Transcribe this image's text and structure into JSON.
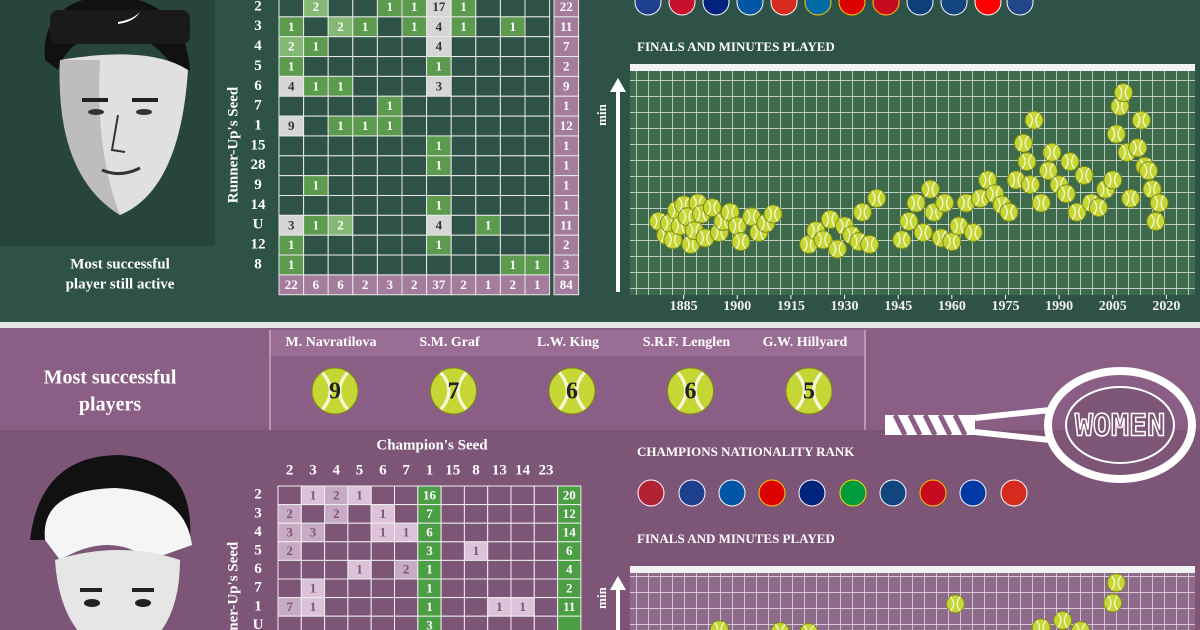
{
  "men": {
    "portrait_caption": [
      "Most successful",
      "player still active"
    ],
    "seed_matrix": {
      "row_axis_label": "Runner-Up's Seed",
      "rows": [
        {
          "seed": "2",
          "counts": [
            null,
            2,
            null,
            null,
            1,
            1,
            17,
            1,
            null,
            null,
            null
          ],
          "total": 22
        },
        {
          "seed": "3",
          "counts": [
            1,
            null,
            2,
            1,
            null,
            1,
            4,
            1,
            null,
            1,
            null
          ],
          "total": 11
        },
        {
          "seed": "4",
          "counts": [
            2,
            1,
            null,
            null,
            null,
            null,
            4,
            null,
            null,
            null,
            null
          ],
          "total": 7
        },
        {
          "seed": "5",
          "counts": [
            1,
            null,
            null,
            null,
            null,
            null,
            1,
            null,
            null,
            null,
            null
          ],
          "total": 2
        },
        {
          "seed": "6",
          "counts": [
            4,
            1,
            1,
            null,
            null,
            null,
            3,
            null,
            null,
            null,
            null
          ],
          "total": 9
        },
        {
          "seed": "7",
          "counts": [
            null,
            null,
            null,
            null,
            1,
            null,
            null,
            null,
            null,
            null,
            null
          ],
          "total": 1
        },
        {
          "seed": "1",
          "counts": [
            9,
            null,
            1,
            1,
            1,
            null,
            null,
            null,
            null,
            null,
            null
          ],
          "total": 12
        },
        {
          "seed": "15",
          "counts": [
            null,
            null,
            null,
            null,
            null,
            null,
            1,
            null,
            null,
            null,
            null
          ],
          "total": 1
        },
        {
          "seed": "28",
          "counts": [
            null,
            null,
            null,
            null,
            null,
            null,
            1,
            null,
            null,
            null,
            null
          ],
          "total": 1
        },
        {
          "seed": "9",
          "counts": [
            null,
            1,
            null,
            null,
            null,
            null,
            null,
            null,
            null,
            null,
            null
          ],
          "total": 1
        },
        {
          "seed": "14",
          "counts": [
            null,
            null,
            null,
            null,
            null,
            null,
            1,
            null,
            null,
            null,
            null
          ],
          "total": 1
        },
        {
          "seed": "U",
          "counts": [
            3,
            1,
            2,
            null,
            null,
            null,
            4,
            null,
            1,
            null,
            null
          ],
          "total": 11
        },
        {
          "seed": "12",
          "counts": [
            1,
            null,
            null,
            null,
            null,
            null,
            1,
            null,
            null,
            null,
            null
          ],
          "total": 2
        },
        {
          "seed": "8",
          "counts": [
            1,
            null,
            null,
            null,
            null,
            null,
            null,
            null,
            null,
            1,
            1
          ],
          "total": 3
        }
      ],
      "column_totals": [
        22,
        6,
        6,
        2,
        3,
        2,
        37,
        2,
        1,
        2,
        1
      ],
      "grand_total": 84
    }
  },
  "banner": {
    "title": [
      "Most successful",
      "players"
    ],
    "players": [
      {
        "name": "M. Navratilova",
        "titles": 9
      },
      {
        "name": "S.M. Graf",
        "titles": 7
      },
      {
        "name": "L.W. King",
        "titles": 6
      },
      {
        "name": "S.R.F. Lenglen",
        "titles": 6
      },
      {
        "name": "G.W. Hillyard",
        "titles": 5
      }
    ]
  },
  "women": {
    "section_label": "WOMEN",
    "nationality_title": "CHAMPIONS NATIONALITY RANK",
    "seed_matrix": {
      "column_axis_label": "Champion's Seed",
      "columns": [
        "2",
        "3",
        "4",
        "5",
        "6",
        "7",
        "1",
        "15",
        "8",
        "13",
        "14",
        "23"
      ],
      "row_axis_label": "Runner-Up's Seed",
      "rows": [
        {
          "seed": "2",
          "counts": [
            null,
            1,
            2,
            1,
            null,
            null,
            16,
            null,
            null,
            null,
            null,
            null
          ],
          "total": 20
        },
        {
          "seed": "3",
          "counts": [
            2,
            null,
            2,
            null,
            1,
            null,
            7,
            null,
            null,
            null,
            null,
            null
          ],
          "total": 12
        },
        {
          "seed": "4",
          "counts": [
            3,
            3,
            null,
            null,
            1,
            1,
            6,
            null,
            null,
            null,
            null,
            null
          ],
          "total": 14
        },
        {
          "seed": "5",
          "counts": [
            2,
            null,
            null,
            null,
            null,
            null,
            3,
            null,
            1,
            null,
            null,
            null
          ],
          "total": 6
        },
        {
          "seed": "6",
          "counts": [
            null,
            null,
            null,
            1,
            null,
            2,
            1,
            null,
            null,
            null,
            null,
            null
          ],
          "total": 4
        },
        {
          "seed": "7",
          "counts": [
            null,
            1,
            null,
            null,
            null,
            null,
            1,
            null,
            null,
            null,
            null,
            null
          ],
          "total": 2
        },
        {
          "seed": "1",
          "counts": [
            7,
            1,
            null,
            null,
            null,
            null,
            1,
            null,
            null,
            1,
            1,
            null
          ],
          "total": 11
        },
        {
          "seed": "U",
          "counts": [
            null,
            null,
            null,
            null,
            null,
            null,
            3,
            null,
            null,
            null,
            null,
            null
          ],
          "total": null
        }
      ]
    }
  },
  "chart_data": [
    {
      "type": "scatter",
      "title": "FINALS AND MINUTES PLAYED",
      "y_label": "min",
      "xlim": [
        1870,
        2028
      ],
      "xticks": [
        1885,
        1900,
        1915,
        1930,
        1945,
        1960,
        1975,
        1990,
        2005,
        2020
      ],
      "ylim": [
        50,
        300
      ],
      "color": "#c6d634",
      "x": [
        1878,
        1880,
        1881,
        1882,
        1883,
        1884,
        1885,
        1886,
        1887,
        1888,
        1889,
        1890,
        1891,
        1893,
        1895,
        1896,
        1898,
        1900,
        1901,
        1904,
        1906,
        1908,
        1910,
        1920,
        1922,
        1924,
        1926,
        1928,
        1930,
        1932,
        1934,
        1935,
        1937,
        1939,
        1946,
        1948,
        1950,
        1952,
        1954,
        1955,
        1957,
        1958,
        1960,
        1962,
        1964,
        1966,
        1968,
        1970,
        1972,
        1974,
        1976,
        1978,
        1980,
        1981,
        1982,
        1983,
        1985,
        1987,
        1988,
        1990,
        1992,
        1993,
        1995,
        1997,
        1999,
        2001,
        2003,
        2005,
        2006,
        2007,
        2008,
        2009,
        2010,
        2012,
        2013,
        2014,
        2015,
        2016,
        2017,
        2018
      ],
      "values": [
        130,
        115,
        128,
        110,
        142,
        125,
        148,
        135,
        105,
        120,
        150,
        138,
        112,
        145,
        118,
        130,
        140,
        125,
        108,
        135,
        118,
        128,
        138,
        105,
        120,
        110,
        132,
        100,
        125,
        115,
        108,
        140,
        105,
        155,
        110,
        130,
        150,
        118,
        165,
        140,
        112,
        150,
        108,
        125,
        150,
        118,
        155,
        175,
        160,
        148,
        140,
        175,
        215,
        195,
        170,
        240,
        150,
        185,
        205,
        170,
        160,
        195,
        140,
        180,
        150,
        145,
        165,
        175,
        225,
        255,
        270,
        205,
        155,
        210,
        240,
        190,
        185,
        165,
        130,
        150
      ]
    },
    {
      "type": "scatter",
      "title": "FINALS AND MINUTES PLAYED",
      "y_label": "min",
      "xlim": [
        1870,
        2028
      ],
      "ylim": [
        50,
        300
      ],
      "color": "#c6d634",
      "x": [
        1895,
        1912,
        1920,
        1961,
        1985,
        1991,
        1996,
        2005,
        2006
      ],
      "values": [
        233,
        231,
        230,
        261,
        235,
        243,
        232,
        262,
        284
      ]
    }
  ]
}
